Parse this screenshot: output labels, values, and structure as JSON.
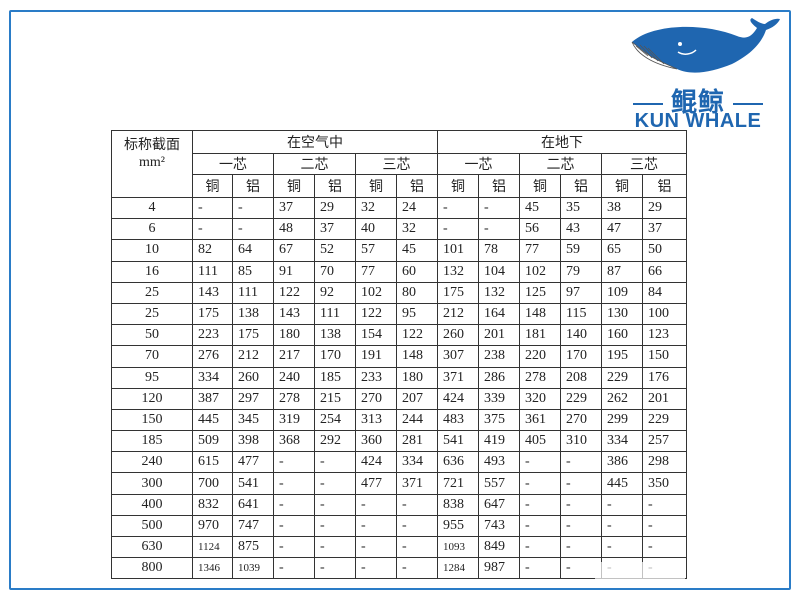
{
  "logo": {
    "brand_cn": "鲲鲸",
    "brand_en": "KUN WHALE",
    "color": "#1f66b0"
  },
  "table": {
    "corner_label_line1": "标称截面",
    "corner_label_line2": "mm²",
    "groups": [
      "在空气中",
      "在地下"
    ],
    "core_types": [
      "一芯",
      "二芯",
      "三芯",
      "一芯",
      "二芯",
      "三芯"
    ],
    "materials": [
      "铜",
      "铝",
      "铜",
      "铝",
      "铜",
      "铝",
      "铜",
      "铝",
      "铜",
      "铝",
      "铜",
      "铝"
    ],
    "rows": [
      {
        "size": "4",
        "values": [
          "-",
          "-",
          "37",
          "29",
          "32",
          "24",
          "-",
          "-",
          "45",
          "35",
          "38",
          "29"
        ]
      },
      {
        "size": "6",
        "values": [
          "-",
          "-",
          "48",
          "37",
          "40",
          "32",
          "-",
          "-",
          "56",
          "43",
          "47",
          "37"
        ]
      },
      {
        "size": "10",
        "values": [
          "82",
          "64",
          "67",
          "52",
          "57",
          "45",
          "101",
          "78",
          "77",
          "59",
          "65",
          "50"
        ]
      },
      {
        "size": "16",
        "values": [
          "111",
          "85",
          "91",
          "70",
          "77",
          "60",
          "132",
          "104",
          "102",
          "79",
          "87",
          "66"
        ]
      },
      {
        "size": "25",
        "values": [
          "143",
          "111",
          "122",
          "92",
          "102",
          "80",
          "175",
          "132",
          "125",
          "97",
          "109",
          "84"
        ]
      },
      {
        "size": "25",
        "values": [
          "175",
          "138",
          "143",
          "111",
          "122",
          "95",
          "212",
          "164",
          "148",
          "115",
          "130",
          "100"
        ]
      },
      {
        "size": "50",
        "values": [
          "223",
          "175",
          "180",
          "138",
          "154",
          "122",
          "260",
          "201",
          "181",
          "140",
          "160",
          "123"
        ]
      },
      {
        "size": "70",
        "values": [
          "276",
          "212",
          "217",
          "170",
          "191",
          "148",
          "307",
          "238",
          "220",
          "170",
          "195",
          "150"
        ]
      },
      {
        "size": "95",
        "values": [
          "334",
          "260",
          "240",
          "185",
          "233",
          "180",
          "371",
          "286",
          "278",
          "208",
          "229",
          "176"
        ]
      },
      {
        "size": "120",
        "values": [
          "387",
          "297",
          "278",
          "215",
          "270",
          "207",
          "424",
          "339",
          "320",
          "229",
          "262",
          "201"
        ]
      },
      {
        "size": "150",
        "values": [
          "445",
          "345",
          "319",
          "254",
          "313",
          "244",
          "483",
          "375",
          "361",
          "270",
          "299",
          "229"
        ]
      },
      {
        "size": "185",
        "values": [
          "509",
          "398",
          "368",
          "292",
          "360",
          "281",
          "541",
          "419",
          "405",
          "310",
          "334",
          "257"
        ]
      },
      {
        "size": "240",
        "values": [
          "615",
          "477",
          "-",
          "-",
          "424",
          "334",
          "636",
          "493",
          "-",
          "-",
          "386",
          "298"
        ]
      },
      {
        "size": "300",
        "values": [
          "700",
          "541",
          "-",
          "-",
          "477",
          "371",
          "721",
          "557",
          "-",
          "-",
          "445",
          "350"
        ]
      },
      {
        "size": "400",
        "values": [
          "832",
          "641",
          "-",
          "-",
          "-",
          "-",
          "838",
          "647",
          "-",
          "-",
          "-",
          "-"
        ]
      },
      {
        "size": "500",
        "values": [
          "970",
          "747",
          "-",
          "-",
          "-",
          "-",
          "955",
          "743",
          "-",
          "-",
          "-",
          "-"
        ]
      },
      {
        "size": "630",
        "values": [
          "1124",
          "875",
          "-",
          "-",
          "-",
          "-",
          "1093",
          "849",
          "-",
          "-",
          "-",
          "-"
        ]
      },
      {
        "size": "800",
        "values": [
          "1346",
          "1039",
          "-",
          "-",
          "-",
          "-",
          "1284",
          "987",
          "-",
          "-",
          "-",
          "-"
        ]
      }
    ]
  }
}
